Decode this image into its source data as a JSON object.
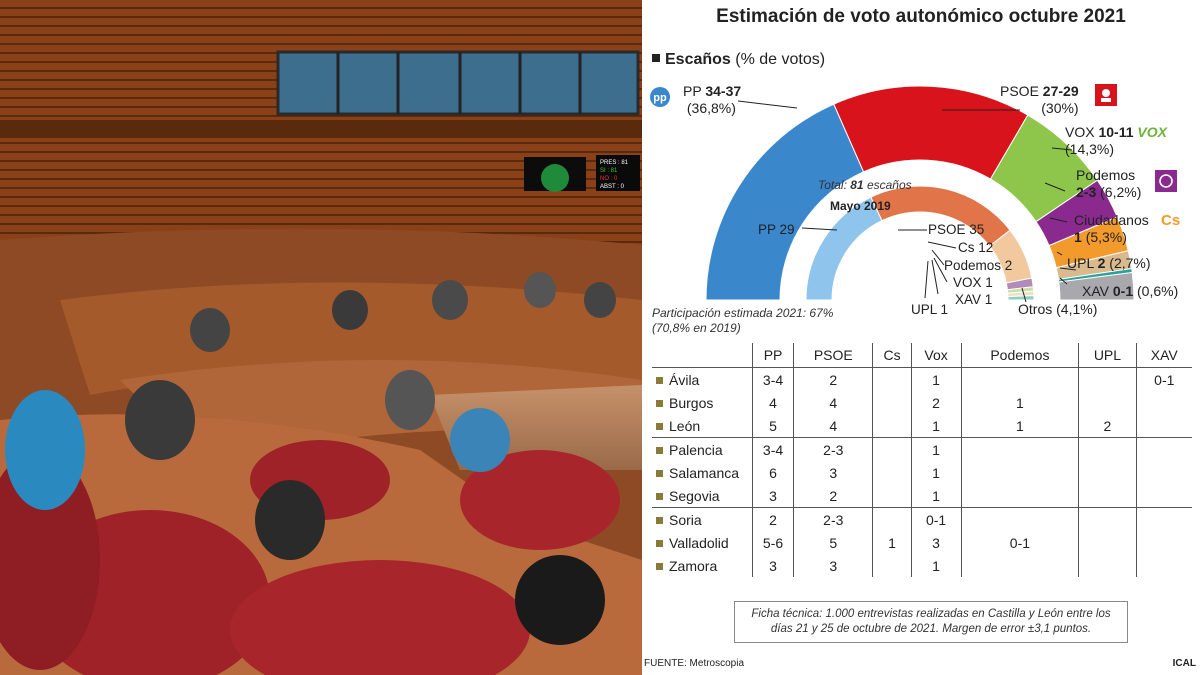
{
  "title": "Estimación de voto autonómico octubre 2021",
  "subtitle": {
    "bold": "Escaños",
    "rest": " (% de votos)"
  },
  "colors": {
    "PP": "#3a87cc",
    "PSOE": "#d9131b",
    "VOX": "#8dc64b",
    "Podemos": "#8a2a8e",
    "Ciudadanos": "#f39a2c",
    "UPL": "#d8ba8e",
    "XAV": "#2aa39a",
    "Otros": "#a9a9ad",
    "PP_2019": "#8fc4ec",
    "PSOE_2019": "#e2744a",
    "Cs_2019": "#f2c89e",
    "Podemos_2019": "#b48ab8",
    "VOX_2019": "#c8e0a6",
    "UPL_2019": "#efe1c6",
    "XAV_2019": "#8ccfc6"
  },
  "labels": {
    "pp": {
      "name": "PP",
      "seats": "34-37",
      "pct": "(36,8%)"
    },
    "psoe": {
      "name": "PSOE",
      "seats": "27-29",
      "pct": "(30%)"
    },
    "vox": {
      "name": "VOX",
      "seats": "10-11",
      "pct": "(14,3%)"
    },
    "podemos": {
      "name": "Podemos",
      "seats": "2-3",
      "pct": "(6,2%)"
    },
    "cs": {
      "name": "Ciudadanos",
      "seats": "1",
      "pct": "(5,3%)"
    },
    "upl": {
      "name": "UPL",
      "seats": "2",
      "pct": "(2,7%)"
    },
    "xav": {
      "name": "XAV",
      "seats": "0-1",
      "pct": "(0,6%)"
    },
    "otros": {
      "name": "Otros",
      "pct": "(4,1%)"
    }
  },
  "logos": {
    "pp": "pp",
    "vox": "VOX",
    "cs": "Cs"
  },
  "total_text": {
    "prefix": "Total: ",
    "number": "81",
    "suffix": " escaños"
  },
  "participation": {
    "line1": "Participación estimada 2021: 67%",
    "line2": "(70,8% en 2019)"
  },
  "may2019": {
    "title": "Mayo 2019",
    "pp": "PP 29",
    "psoe": "PSOE 35",
    "cs": "Cs 12",
    "podemos": "Podemos 2",
    "vox": "VOX 1",
    "upl": "UPL 1",
    "xav": "XAV 1"
  },
  "chart_data": [
    {
      "type": "pie",
      "title": "Estimación de voto autonómico octubre 2021",
      "subtitle": "Escaños (% de votos)",
      "total": "81 escaños",
      "slices": [
        {
          "name": "PP",
          "seats": "34-37",
          "value": 36.8
        },
        {
          "name": "PSOE",
          "seats": "27-29",
          "value": 30
        },
        {
          "name": "VOX",
          "seats": "10-11",
          "value": 14.3
        },
        {
          "name": "Podemos",
          "seats": "2-3",
          "value": 6.2
        },
        {
          "name": "Ciudadanos",
          "seats": "1",
          "value": 5.3
        },
        {
          "name": "UPL",
          "seats": "2",
          "value": 2.7
        },
        {
          "name": "XAV",
          "seats": "0-1",
          "value": 0.6
        },
        {
          "name": "Otros",
          "value": 4.1
        }
      ]
    },
    {
      "type": "pie",
      "title": "Mayo 2019",
      "slices": [
        {
          "name": "PP",
          "value": 29
        },
        {
          "name": "PSOE",
          "value": 35
        },
        {
          "name": "Cs",
          "value": 12
        },
        {
          "name": "Podemos",
          "value": 2
        },
        {
          "name": "VOX",
          "value": 1
        },
        {
          "name": "UPL",
          "value": 1
        },
        {
          "name": "XAV",
          "value": 1
        }
      ]
    },
    {
      "type": "table",
      "columns": [
        "",
        "PP",
        "PSOE",
        "Cs",
        "Vox",
        "Podemos",
        "UPL",
        "XAV"
      ],
      "rows": [
        [
          "Ávila",
          "3-4",
          "2",
          "",
          "1",
          "",
          "",
          "0-1"
        ],
        [
          "Burgos",
          "4",
          "4",
          "",
          "2",
          "1",
          "",
          ""
        ],
        [
          "León",
          "5",
          "4",
          "",
          "1",
          "1",
          "2",
          ""
        ],
        [
          "Palencia",
          "3-4",
          "2-3",
          "",
          "1",
          "",
          "",
          ""
        ],
        [
          "Salamanca",
          "6",
          "3",
          "",
          "1",
          "",
          "",
          ""
        ],
        [
          "Segovia",
          "3",
          "2",
          "",
          "1",
          "",
          "",
          ""
        ],
        [
          "Soria",
          "2",
          "2-3",
          "",
          "0-1",
          "",
          "",
          ""
        ],
        [
          "Valladolid",
          "5-6",
          "5",
          "1",
          "3",
          "0-1",
          "",
          ""
        ],
        [
          "Zamora",
          "3",
          "3",
          "",
          "1",
          "",
          "",
          ""
        ]
      ]
    }
  ],
  "ficha": "Ficha técnica: 1.000 entrevistas realizadas en Castilla y León entre los días 21 y 25 de octubre de 2021. Margen de error ±3,1 puntos.",
  "fuente": "FUENTE: Metroscopia",
  "ical": "ICAL",
  "photo": {
    "display1": "PRES : 81",
    "display2": "SI : 81",
    "display3": "NO : 0",
    "display4": "ABST : 0"
  }
}
